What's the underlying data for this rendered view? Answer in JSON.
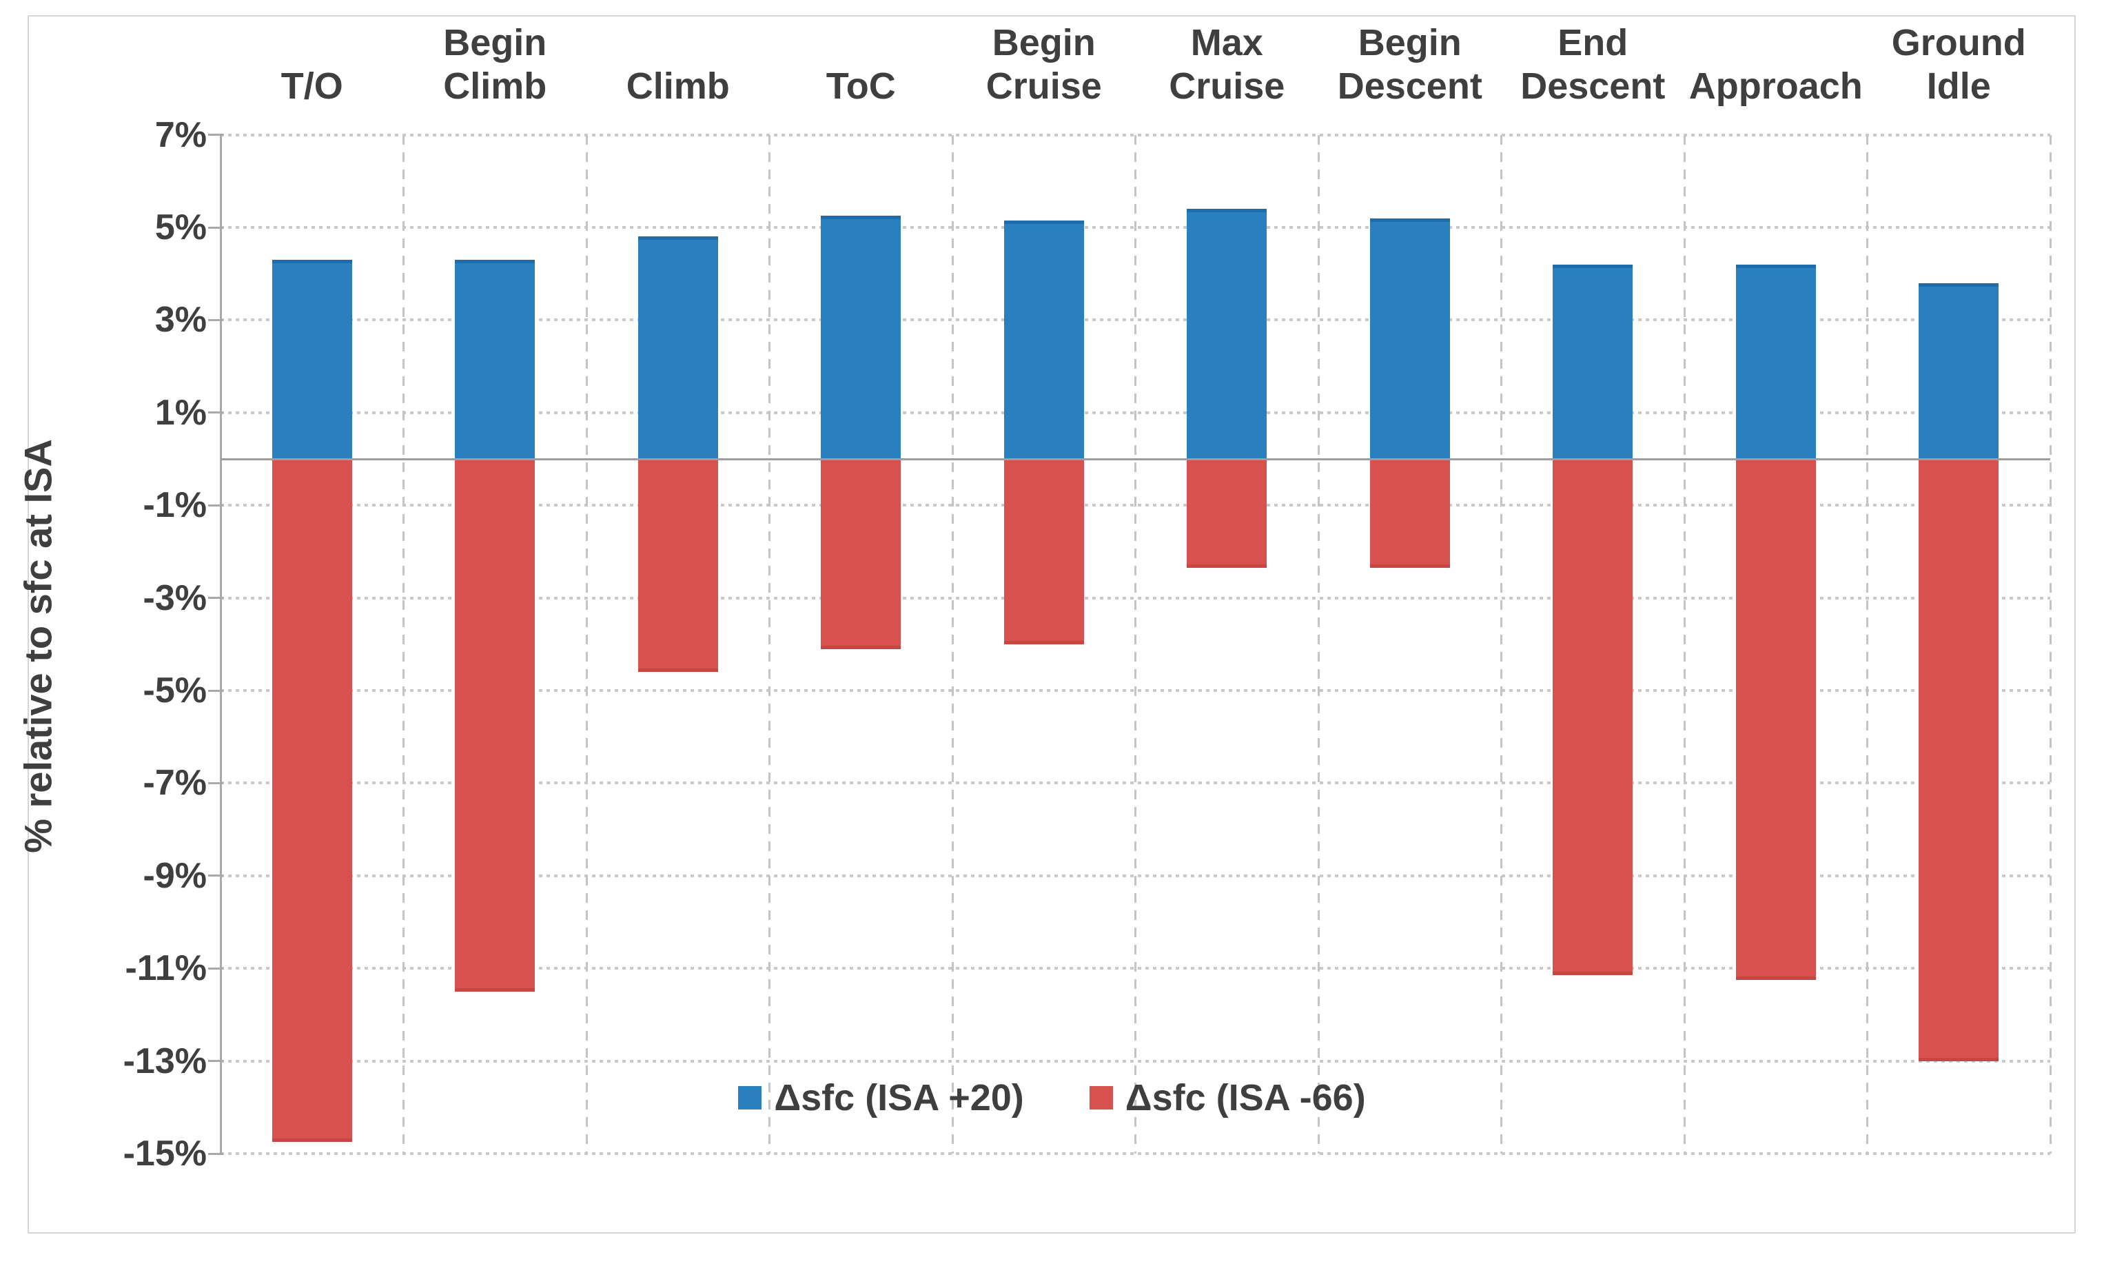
{
  "figure": {
    "axis_title": "% relative to sfc at ISA"
  },
  "chart_data": {
    "type": "bar",
    "title": "",
    "xlabel": "",
    "ylabel": "% relative to sfc at ISA",
    "ylim": [
      -15,
      7
    ],
    "ytick_step": 2,
    "ytick_labels": [
      "7%",
      "5%",
      "3%",
      "1%",
      "-1%",
      "-3%",
      "-5%",
      "-7%",
      "-9%",
      "-11%",
      "-13%",
      "-15%"
    ],
    "ytick_values": [
      7,
      5,
      3,
      1,
      -1,
      -3,
      -5,
      -7,
      -9,
      -11,
      -13,
      -15
    ],
    "grid": true,
    "legend_position": "bottom-center-inside",
    "categories": [
      "T/O",
      "Begin\nClimb",
      "Climb",
      "ToC",
      "Begin\nCruise",
      "Max\nCruise",
      "Begin\nDescent",
      "End\nDescent",
      "Approach",
      "Ground\nIdle"
    ],
    "series": [
      {
        "name": "Δsfc (ISA +20)",
        "color": "#2a80bf",
        "edge_color": "#1d6dad",
        "values": [
          4.3,
          4.3,
          4.8,
          5.25,
          5.15,
          5.4,
          5.2,
          4.2,
          4.2,
          3.8
        ]
      },
      {
        "name": "Δsfc (ISA -66)",
        "color": "#d9514e",
        "edge_color": "#c74643",
        "values": [
          -14.75,
          -11.5,
          -4.6,
          -4.1,
          -4.0,
          -2.35,
          -2.35,
          -11.15,
          -11.25,
          -13.0
        ]
      }
    ],
    "colors": {
      "grid_horizontal": "#c9c9c9",
      "grid_vertical": "#c4c4c4",
      "axis": "#a9a9a9",
      "zero_line": "#9e9e9e",
      "text": "#3f3f3f",
      "frame_border": "#d5d5d5",
      "background": "#ffffff"
    }
  }
}
